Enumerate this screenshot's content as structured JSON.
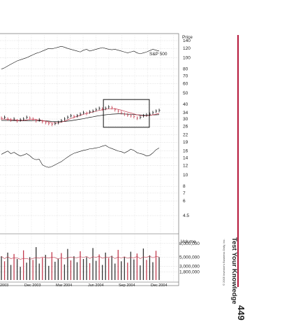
{
  "chart_data": {
    "type": "stock",
    "price_axis": {
      "label": "Price",
      "ticks": [
        "140",
        "120",
        "100",
        "80",
        "70",
        "60",
        "50",
        "40",
        "34",
        "30",
        "26",
        "22",
        "19",
        "16",
        "14",
        "12",
        "10",
        "8",
        "7",
        "6",
        "4.5"
      ]
    },
    "sp500_label": "S&P 500",
    "volume_axis": {
      "label": "Volume",
      "ticks": [
        "8,000,000",
        "5,000,000",
        "3,000,000",
        "1,800,000"
      ]
    },
    "x_ticks": [
      "2003",
      "Dec 2003",
      "Mar 2004",
      "Jun 2004",
      "Sep 2004",
      "Dec 2004"
    ],
    "price_bars": [
      30.5,
      31,
      30,
      29.5,
      30,
      29,
      29.5,
      30,
      31,
      30.5,
      30,
      29,
      29.5,
      28.5,
      28,
      27.5,
      27,
      27.5,
      28,
      29,
      30,
      31,
      32,
      31.5,
      32,
      33,
      34,
      33.5,
      34.5,
      35,
      36,
      37,
      36.5,
      37,
      38,
      37.5,
      36,
      35,
      34,
      33,
      32.5,
      32,
      31.5,
      30.5,
      31,
      32,
      32.5,
      33,
      34,
      35,
      35.5
    ],
    "red_line": [
      30,
      30,
      29.8,
      29.6,
      29.5,
      29.3,
      29.2,
      29.2,
      29.5,
      29.8,
      29.9,
      29.7,
      29.4,
      29.1,
      28.7,
      28.3,
      27.9,
      27.7,
      27.8,
      28.2,
      28.8,
      29.5,
      30.3,
      31,
      31.6,
      32.2,
      32.9,
      33.5,
      34,
      34.5,
      35,
      35.6,
      36,
      36.3,
      36.6,
      36.8,
      36.7,
      36.3,
      35.7,
      35,
      34.4,
      33.8,
      33.2,
      32.6,
      32.2,
      32,
      32,
      32.2,
      32.6,
      33,
      33.5
    ],
    "black_line": [
      29.2,
      29.2,
      29.2,
      29.1,
      29.1,
      29,
      29,
      29,
      29,
      29,
      29.1,
      29.1,
      29,
      29,
      28.9,
      28.8,
      28.6,
      28.5,
      28.5,
      28.5,
      28.6,
      28.8,
      29,
      29.3,
      29.6,
      29.9,
      30.2,
      30.6,
      31,
      31.3,
      31.7,
      32,
      32.3,
      32.6,
      32.8,
      33,
      33.1,
      33.2,
      33.2,
      33.1,
      33,
      32.9,
      32.8,
      32.6,
      32.5,
      32.4,
      32.4,
      32.4,
      32.5,
      32.6,
      32.7
    ],
    "sp500_line": [
      80,
      82,
      85,
      88,
      91,
      94,
      96,
      98,
      100,
      103,
      106,
      109,
      111,
      114,
      117,
      120,
      119,
      121,
      123,
      125,
      123,
      120,
      118,
      116,
      114,
      112,
      116,
      118,
      114,
      116,
      118,
      120,
      122,
      120,
      118,
      117,
      118,
      116,
      114,
      112,
      110,
      112,
      114,
      110,
      108,
      110,
      112,
      115,
      118,
      116,
      114
    ],
    "rs_line": [
      15,
      15.5,
      16,
      15.2,
      15.6,
      15,
      14.5,
      14.8,
      15.2,
      14.6,
      13.8,
      13.5,
      13.6,
      12.2,
      11.8,
      11.6,
      11.8,
      12.2,
      12.6,
      13,
      13.6,
      14.2,
      14.8,
      15.3,
      15.6,
      15.9,
      16.2,
      16.4,
      16.7,
      16.8,
      17,
      17.2,
      17.6,
      17.9,
      17.2,
      16.8,
      16.4,
      16,
      15.8,
      15.4,
      15.9,
      16.6,
      16.2,
      15.5,
      15.2,
      15,
      14.5,
      14.7,
      15.4,
      16.4,
      17
    ],
    "volumes": [
      5.2,
      4.1,
      6.0,
      3.3,
      5.7,
      4.6,
      2.9,
      6.5,
      3.8,
      5.0,
      4.4,
      7.2,
      3.6,
      4.9,
      5.5,
      3.1,
      6.1,
      4.0,
      4.7,
      5.9,
      3.4,
      6.8,
      4.3,
      5.2,
      3.9,
      6.3,
      4.6,
      5.0,
      3.7,
      7.0,
      4.2,
      5.6,
      3.3,
      6.0,
      4.8,
      5.3,
      3.6,
      6.6,
      4.1,
      5.1,
      3.8,
      6.2,
      4.5,
      5.8,
      3.2,
      6.9,
      4.4,
      5.4,
      3.9,
      6.4,
      5.0
    ],
    "highlight_box": {
      "from_bar": 33,
      "to_bar": 46
    },
    "grid": true
  },
  "caption": {
    "section_title": "Test Your Knowledge",
    "page_number": "449",
    "copyright": "© 2005 Investor's Business Daily, Inc."
  }
}
